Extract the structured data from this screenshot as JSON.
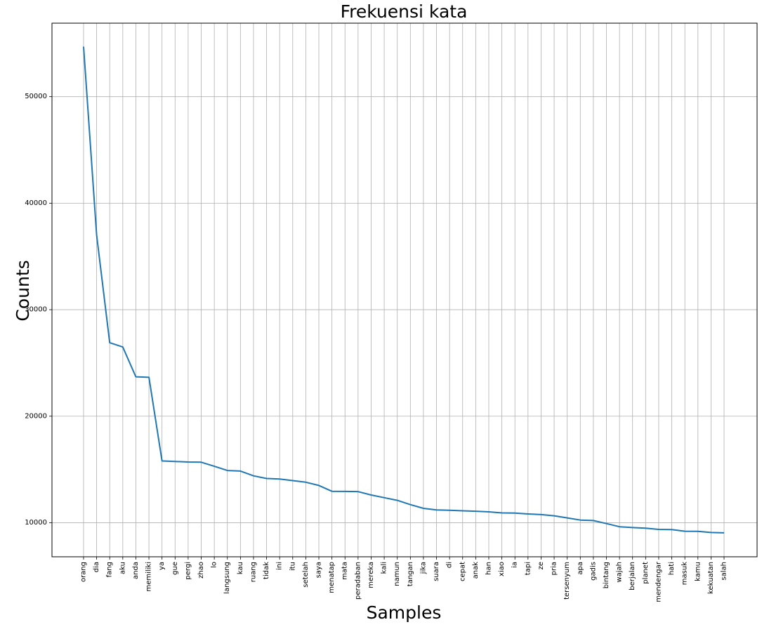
{
  "chart_data": {
    "type": "line",
    "title": "Frekuensi kata",
    "xlabel": "Samples",
    "ylabel": "Counts",
    "grid": true,
    "line_color": "#1f77b4",
    "ylim": [
      6800,
      56900
    ],
    "yticks": [
      10000,
      20000,
      30000,
      40000,
      50000
    ],
    "categories": [
      "orang",
      "dia",
      "fang",
      "aku",
      "anda",
      "memiliki",
      "ya",
      "gue",
      "pergi",
      "zhao",
      "lo",
      "langsung",
      "kau",
      "ruang",
      "tidak",
      "ini",
      "itu",
      "setelah",
      "saya",
      "menatap",
      "mata",
      "peradaban",
      "mereka",
      "kali",
      "namun",
      "tangan",
      "jika",
      "suara",
      "di",
      "cepat",
      "anak",
      "han",
      "xiao",
      "ia",
      "tapi",
      "ze",
      "pria",
      "tersenyum",
      "apa",
      "gadis",
      "bintang",
      "wajah",
      "berjalan",
      "planet",
      "mendengar",
      "hati",
      "masuk",
      "kamu",
      "kekuatan",
      "salah"
    ],
    "values": [
      54700,
      37000,
      26900,
      26500,
      23700,
      23650,
      15800,
      15750,
      15700,
      15680,
      15300,
      14900,
      14850,
      14400,
      14150,
      14100,
      13950,
      13800,
      13500,
      12950,
      12940,
      12920,
      12600,
      12350,
      12100,
      11700,
      11350,
      11200,
      11170,
      11120,
      11080,
      11020,
      10920,
      10900,
      10820,
      10760,
      10650,
      10450,
      10250,
      10200,
      9920,
      9620,
      9540,
      9480,
      9370,
      9360,
      9200,
      9190,
      9080,
      9050
    ]
  }
}
